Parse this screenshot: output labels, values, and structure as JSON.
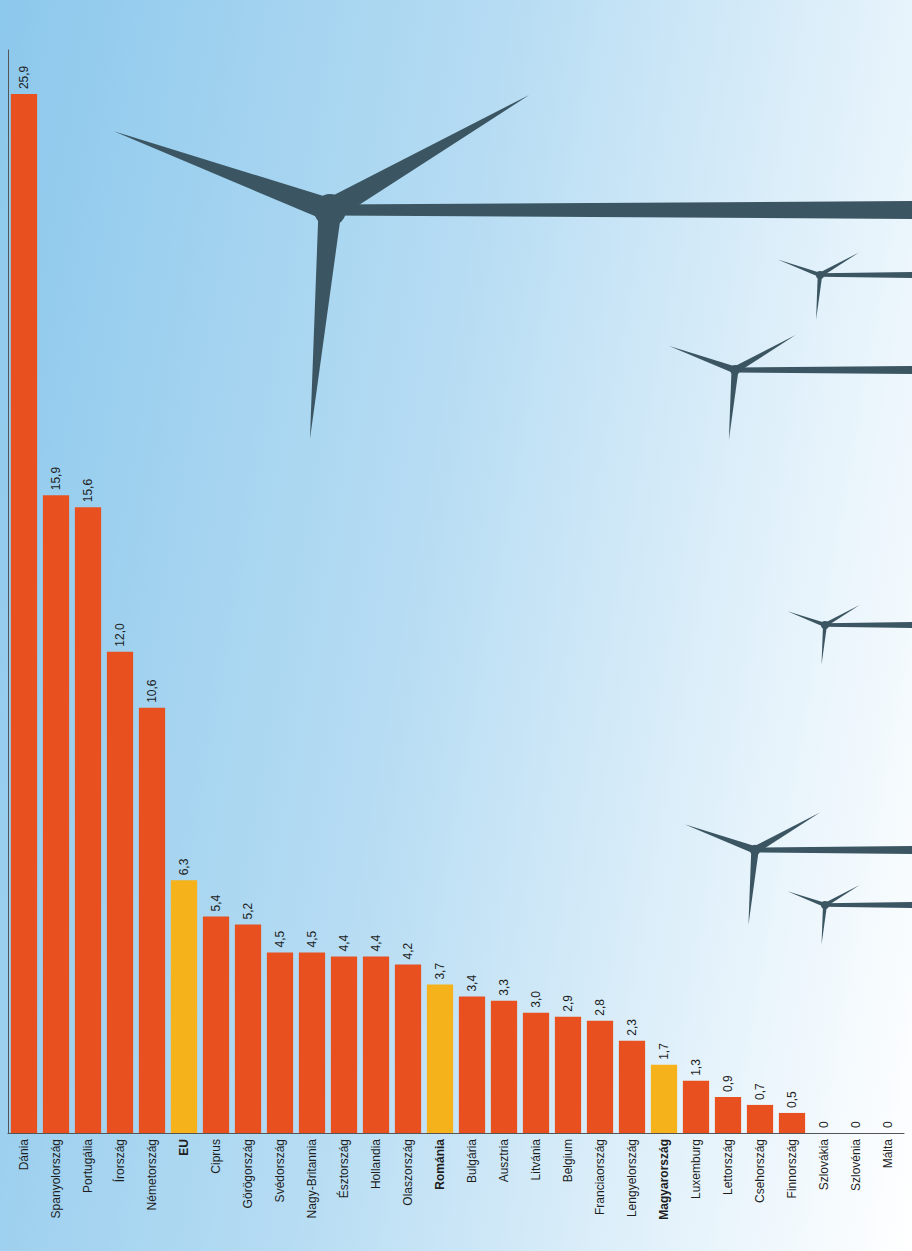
{
  "chart_data": {
    "type": "bar",
    "categories": [
      "Dánia",
      "Spanyolország",
      "Portugália",
      "Írország",
      "Németország",
      "EU",
      "Ciprus",
      "Görögország",
      "Svédország",
      "Nagy-Britannia",
      "Észtország",
      "Hollandia",
      "Olaszország",
      "Románia",
      "Bulgária",
      "Ausztria",
      "Litvánia",
      "Belgium",
      "Franciaország",
      "Lengyelország",
      "Magyarország",
      "Luxemburg",
      "Lettország",
      "Csehország",
      "Finnország",
      "Szlovákia",
      "Szlovénia",
      "Málta"
    ],
    "values": [
      25.9,
      15.9,
      15.6,
      12.0,
      10.6,
      6.3,
      5.4,
      5.2,
      4.5,
      4.5,
      4.4,
      4.4,
      4.2,
      3.7,
      3.4,
      3.3,
      3.0,
      2.9,
      2.8,
      2.3,
      1.7,
      1.3,
      0.9,
      0.7,
      0.5,
      0,
      0,
      0
    ],
    "value_labels": [
      "25,9",
      "15,9",
      "15,6",
      "12,0",
      "10,6",
      "6,3",
      "5,4",
      "5,2",
      "4,5",
      "4,5",
      "4,4",
      "4,4",
      "4,2",
      "3,7",
      "3,4",
      "3,3",
      "3,0",
      "2,9",
      "2,8",
      "2,3",
      "1,7",
      "1,3",
      "0,9",
      "0,7",
      "0,5",
      "0",
      "0",
      "0"
    ],
    "colors": [
      "#e8501f",
      "#e8501f",
      "#e8501f",
      "#e8501f",
      "#e8501f",
      "#f5b21b",
      "#e8501f",
      "#e8501f",
      "#e8501f",
      "#e8501f",
      "#e8501f",
      "#e8501f",
      "#e8501f",
      "#f5b21b",
      "#e8501f",
      "#e8501f",
      "#e8501f",
      "#e8501f",
      "#e8501f",
      "#e8501f",
      "#f5b21b",
      "#e8501f",
      "#e8501f",
      "#e8501f",
      "#e8501f",
      "#e8501f",
      "#e8501f",
      "#e8501f"
    ],
    "ylim": [
      0,
      27
    ],
    "data_labels": true,
    "tick_labels": "x",
    "grid": false
  }
}
